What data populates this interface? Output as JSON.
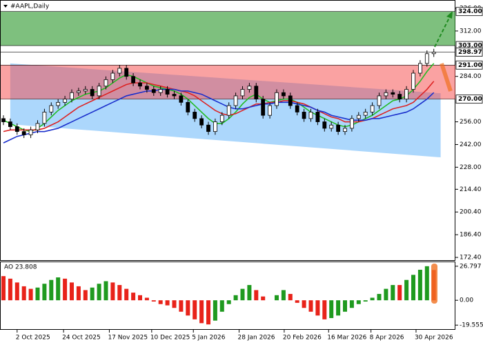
{
  "chart_data": [
    {
      "type": "candlestick",
      "title": "#AAPL,Daily",
      "open": [
        258,
        256,
        253,
        250,
        248,
        251,
        255,
        262,
        266,
        268,
        270,
        274,
        275,
        276,
        272,
        278,
        282,
        286,
        289,
        284,
        280,
        278,
        276,
        274,
        276,
        273,
        272,
        268,
        262,
        258,
        254,
        250,
        256,
        260,
        266,
        272,
        276,
        278,
        270,
        260,
        266,
        274,
        272,
        266,
        262,
        258,
        262,
        256,
        252,
        254,
        250,
        252,
        258,
        260,
        262,
        266,
        272,
        274,
        273,
        270,
        276,
        286,
        292,
        298
      ],
      "high": [
        260,
        258,
        255,
        252,
        253,
        257,
        264,
        268,
        270,
        272,
        276,
        277,
        278,
        278,
        280,
        284,
        288,
        291,
        291,
        286,
        282,
        280,
        278,
        278,
        278,
        275,
        274,
        270,
        264,
        260,
        256,
        258,
        262,
        268,
        274,
        278,
        280,
        280,
        272,
        268,
        276,
        276,
        274,
        268,
        264,
        264,
        264,
        258,
        256,
        256,
        254,
        260,
        262,
        264,
        268,
        274,
        276,
        276,
        275,
        278,
        288,
        294,
        300,
        301
      ],
      "low": [
        254,
        251,
        248,
        246,
        246,
        249,
        253,
        260,
        264,
        266,
        268,
        272,
        273,
        270,
        270,
        276,
        280,
        284,
        282,
        278,
        276,
        274,
        272,
        272,
        271,
        270,
        266,
        260,
        256,
        252,
        248,
        248,
        254,
        258,
        264,
        270,
        274,
        268,
        258,
        258,
        264,
        270,
        264,
        260,
        256,
        256,
        254,
        250,
        250,
        248,
        248,
        250,
        256,
        258,
        260,
        264,
        270,
        271,
        268,
        268,
        274,
        284,
        290,
        296
      ],
      "close": [
        256,
        253,
        250,
        248,
        251,
        255,
        262,
        266,
        268,
        270,
        274,
        275,
        276,
        272,
        278,
        282,
        286,
        289,
        284,
        280,
        278,
        276,
        274,
        276,
        273,
        272,
        268,
        262,
        258,
        254,
        250,
        256,
        260,
        266,
        272,
        276,
        278,
        270,
        260,
        266,
        274,
        272,
        266,
        262,
        258,
        262,
        256,
        252,
        254,
        250,
        252,
        258,
        260,
        262,
        266,
        272,
        274,
        273,
        270,
        276,
        286,
        292,
        298,
        298.97
      ],
      "up_color": "#ffffff",
      "down_color": "#000000",
      "series": [
        {
          "color": "#22bb22",
          "values": [
            257,
            255,
            253,
            251,
            250,
            252,
            255,
            259,
            263,
            266,
            269,
            271,
            273,
            274,
            275,
            277,
            280,
            283,
            285,
            284,
            282,
            280,
            278,
            277,
            276,
            275,
            273,
            270,
            266,
            262,
            258,
            255,
            255,
            258,
            262,
            267,
            271,
            273,
            270,
            268,
            269,
            270,
            270,
            268,
            265,
            262,
            260,
            258,
            256,
            254,
            253,
            254,
            256,
            258,
            260,
            263,
            266,
            269,
            270,
            272,
            276,
            281,
            287,
            292
          ]
        },
        {
          "color": "#dd2222",
          "values": [
            250,
            251,
            251,
            251,
            251,
            251,
            252,
            254,
            256,
            259,
            262,
            265,
            267,
            269,
            271,
            273,
            275,
            277,
            279,
            280,
            280,
            280,
            279,
            278,
            277,
            276,
            275,
            274,
            272,
            269,
            266,
            263,
            261,
            260,
            261,
            263,
            265,
            267,
            267,
            268,
            268,
            269,
            269,
            268,
            267,
            265,
            263,
            261,
            259,
            258,
            256,
            256,
            256,
            257,
            258,
            260,
            262,
            264,
            265,
            266,
            268,
            272,
            276,
            281
          ]
        },
        {
          "color": "#1a2fcc",
          "values": [
            243,
            245,
            247,
            248,
            249,
            250,
            250,
            251,
            252,
            254,
            256,
            258,
            260,
            262,
            264,
            266,
            268,
            270,
            272,
            273,
            274,
            275,
            275,
            276,
            276,
            276,
            275,
            275,
            274,
            273,
            271,
            269,
            267,
            265,
            264,
            264,
            265,
            266,
            267,
            267,
            268,
            268,
            268,
            267,
            266,
            265,
            263,
            262,
            260,
            259,
            258,
            257,
            257,
            257,
            258,
            258,
            259,
            260,
            261,
            262,
            264,
            267,
            270,
            274
          ]
        }
      ],
      "ylim": [
        170.3,
        331.1
      ],
      "yticks": [
        {
          "value": 326,
          "label": "326.00"
        },
        {
          "value": 312,
          "label": "312.00"
        },
        {
          "value": 284,
          "label": "284.00"
        },
        {
          "value": 256,
          "label": "256.00"
        },
        {
          "value": 242,
          "label": "242.00"
        },
        {
          "value": 228,
          "label": "228.00"
        },
        {
          "value": 214.4,
          "label": "214.40"
        },
        {
          "value": 200.4,
          "label": "200.40"
        },
        {
          "value": 186.4,
          "label": "186.40"
        },
        {
          "value": 172.4,
          "label": "172.40"
        }
      ],
      "levels": [
        {
          "value": 324,
          "label": "324.00"
        },
        {
          "value": 303,
          "label": "303.00"
        },
        {
          "value": 298.97,
          "label": "298.97"
        },
        {
          "value": 291,
          "label": "291.00"
        },
        {
          "value": 270,
          "label": "270.00"
        }
      ],
      "zones": [
        {
          "from": 303,
          "to": 324,
          "color": "rgba(40,150,40,0.6)"
        },
        {
          "from": 270,
          "to": 291,
          "color": "rgba(245,70,70,0.5)"
        }
      ],
      "channel": {
        "upper": [
          292,
          273.6
        ],
        "lower": [
          254.5,
          234.1
        ],
        "color": "rgba(90,175,250,0.5)"
      },
      "x_labels": [
        {
          "value": 2,
          "label": "2 Oct 2025"
        },
        {
          "value": 8.8,
          "label": "24 Oct 2025"
        },
        {
          "value": 15.5,
          "label": "17 Nov 2025"
        },
        {
          "value": 21.7,
          "label": "10 Dec 2025"
        },
        {
          "value": 27.8,
          "label": "5 Jan 2026"
        },
        {
          "value": 34.5,
          "label": "28 Jan 2026"
        },
        {
          "value": 41.1,
          "label": "20 Feb 2026"
        },
        {
          "value": 47.6,
          "label": "16 Mar 2026"
        },
        {
          "value": 53.8,
          "label": "8 Apr 2026"
        },
        {
          "value": 60.4,
          "label": "30 Apr 2026"
        }
      ]
    },
    {
      "type": "bar",
      "title": "AO 23.808",
      "values": [
        19,
        17,
        14,
        11,
        9,
        10,
        13,
        16,
        18,
        17,
        14,
        11,
        8,
        10,
        13,
        15,
        14,
        12,
        9,
        6,
        4,
        2,
        -1,
        -3,
        -4,
        -6,
        -9,
        -12,
        -15,
        -18,
        -19,
        -16,
        -9,
        -3,
        4,
        9,
        12,
        8,
        3,
        0,
        4,
        8,
        5,
        -2,
        -6,
        -9,
        -12,
        -15,
        -14,
        -12,
        -9,
        -6,
        -3,
        -1,
        2,
        5,
        9,
        12,
        12,
        16,
        20,
        24,
        26.797,
        23.808
      ],
      "up_color": "#1f9a1f",
      "down_color": "#e8231a",
      "ylim": [
        -23.24,
        29.95
      ],
      "yticks": [
        {
          "value": 26.797,
          "label": "26.797"
        },
        {
          "value": 0,
          "label": "0.00"
        },
        {
          "value": -19.555,
          "label": "-19.555"
        }
      ]
    }
  ]
}
